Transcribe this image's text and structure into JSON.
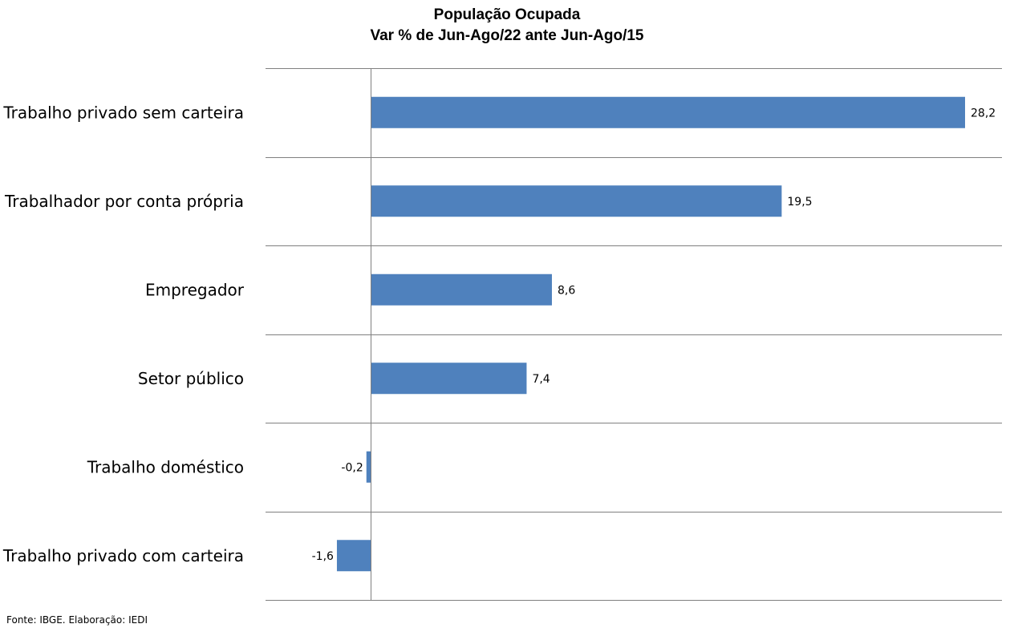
{
  "chart_data": {
    "type": "bar",
    "orientation": "horizontal",
    "title": "População Ocupada",
    "subtitle": "Var % de Jun-Ago/22 ante Jun-Ago/15",
    "categories": [
      "Trabalho privado sem carteira",
      "Trabalhador por conta própria",
      "Empregador",
      "Setor público",
      "Trabalho doméstico",
      "Trabalho privado com carteira"
    ],
    "values": [
      28.2,
      19.5,
      8.6,
      7.4,
      -0.2,
      -1.6
    ],
    "value_labels": [
      "28,2",
      "19,5",
      "8,6",
      "7,4",
      "-0,2",
      "-1,6"
    ],
    "xlim": [
      -5,
      30
    ],
    "grid": "horizontal separators",
    "bar_color": "#4F81BD",
    "grid_color": "#808080"
  },
  "source": "Fonte: IBGE. Elaboração: IEDI"
}
